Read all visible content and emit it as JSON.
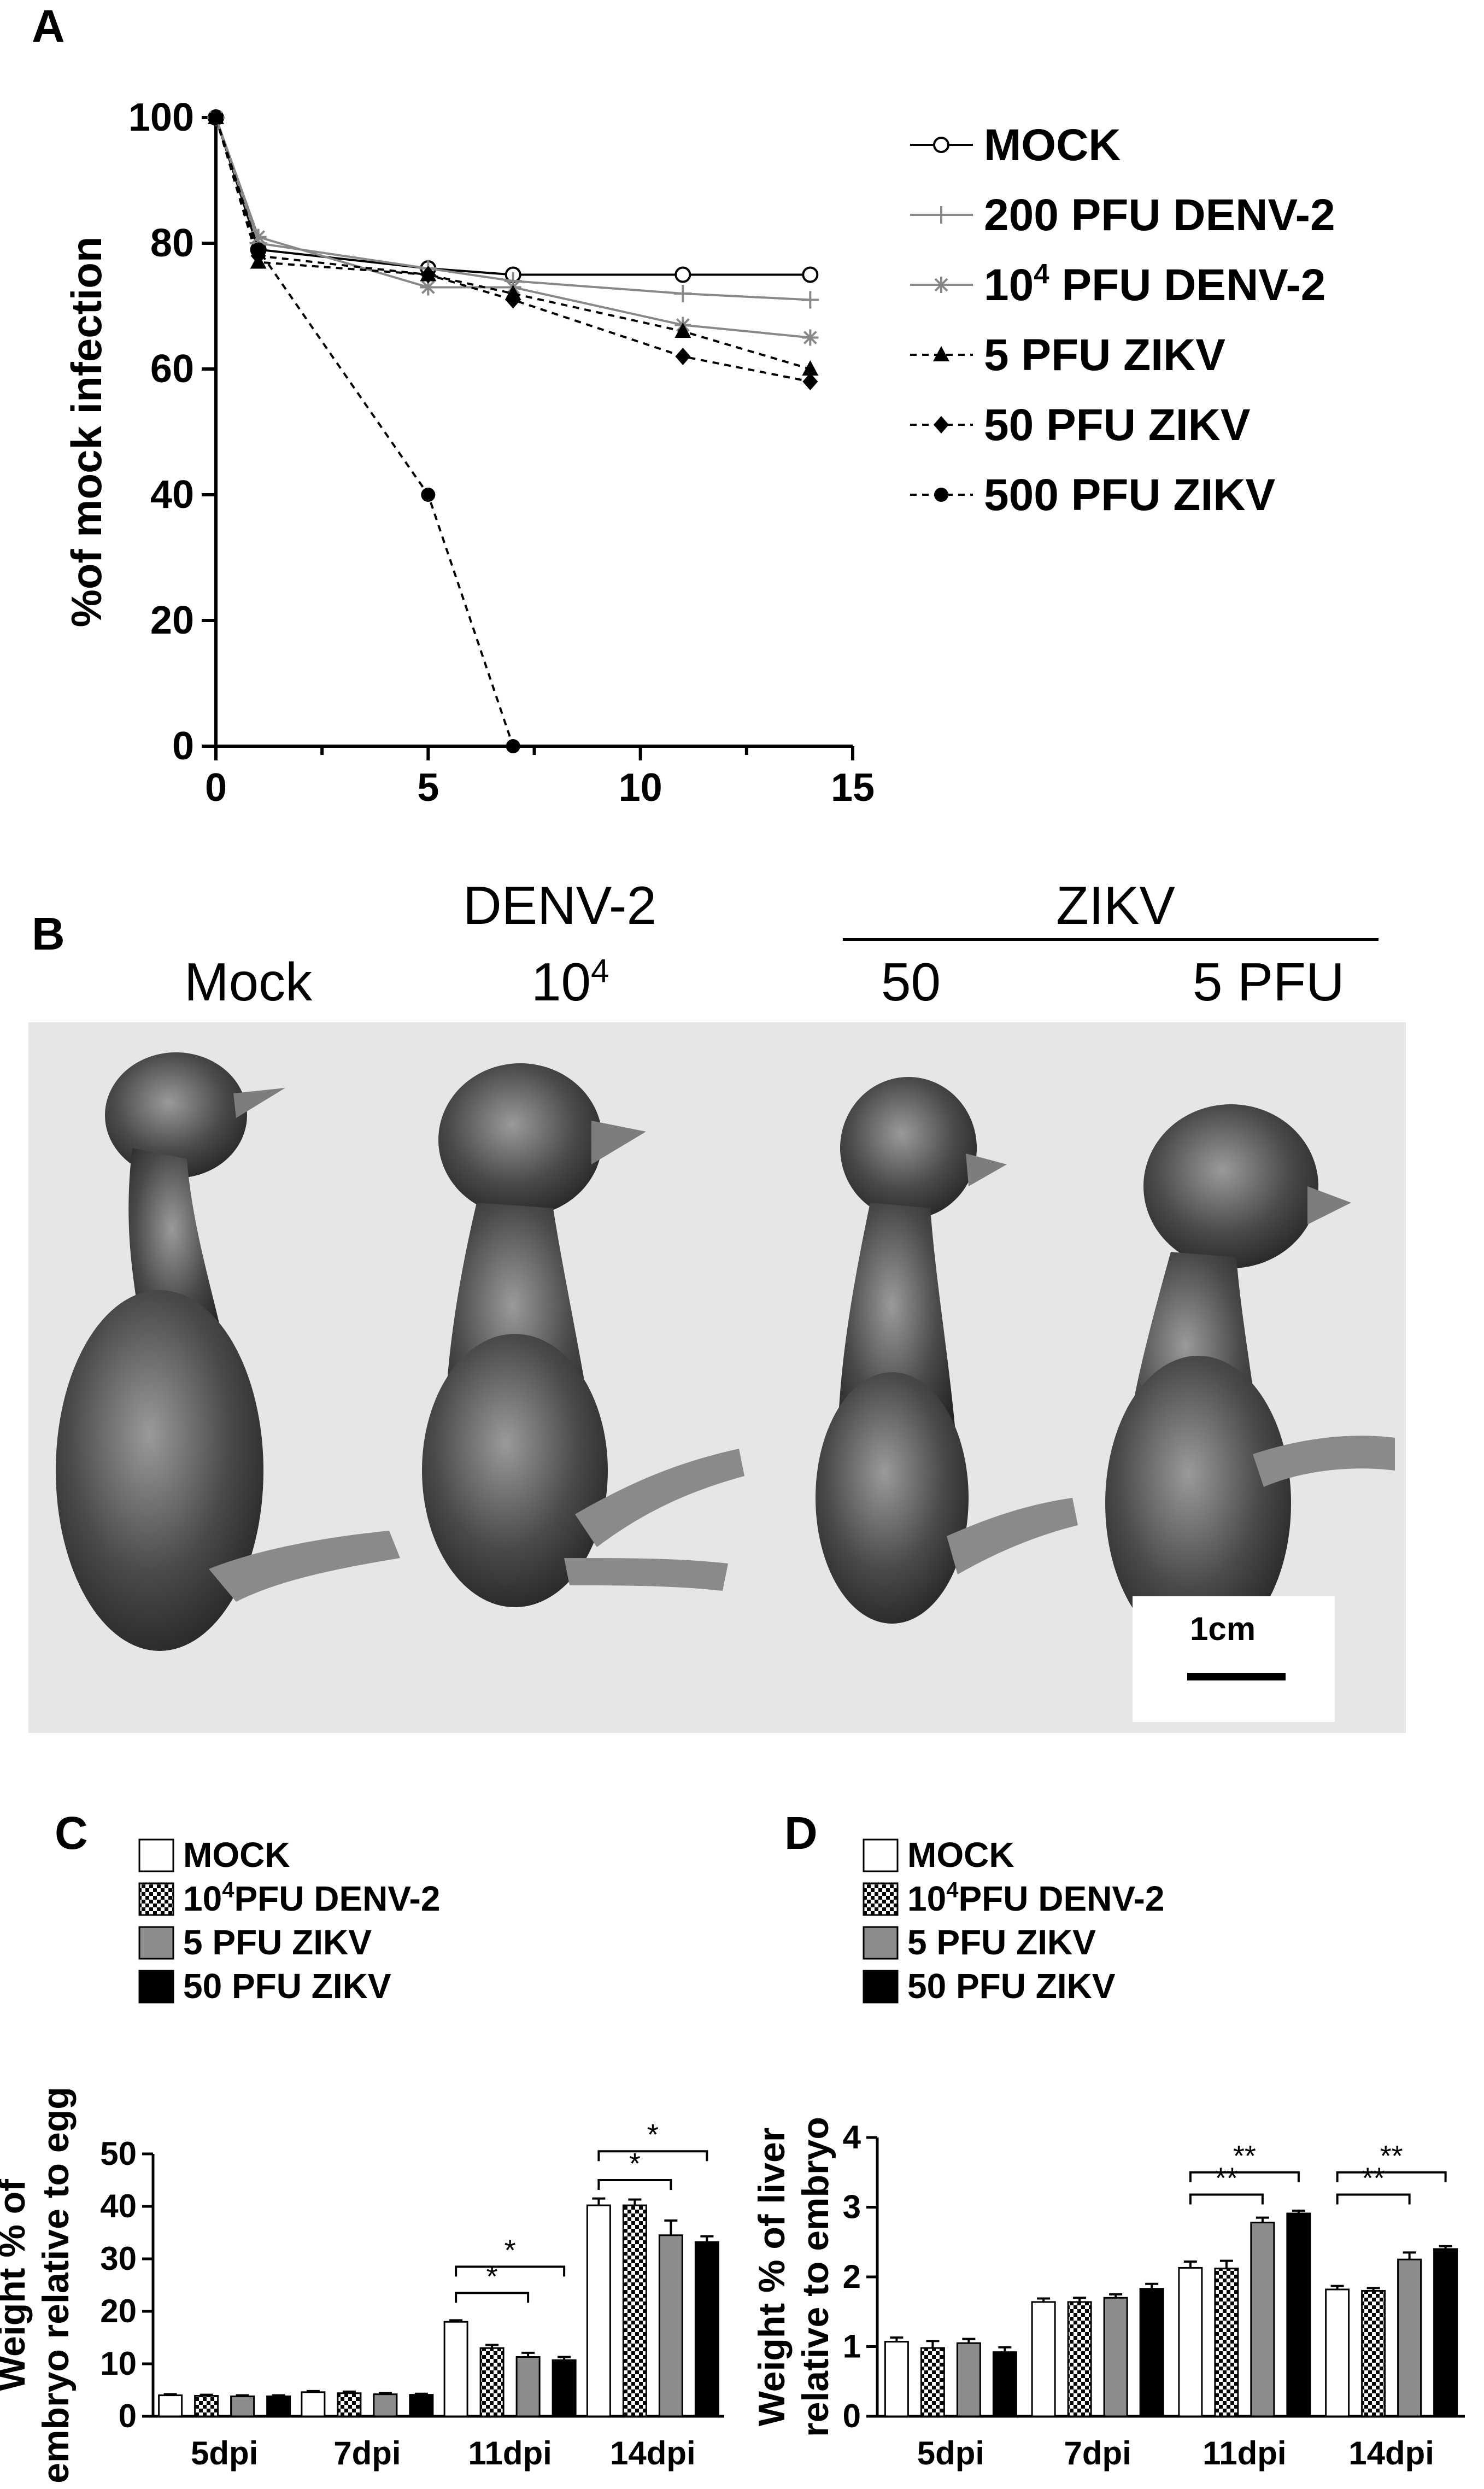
{
  "panels": {
    "a": "A",
    "b": "B",
    "c": "C",
    "d": "D"
  },
  "chart_data": [
    {
      "panel": "A",
      "type": "line",
      "title": "",
      "xlabel": "",
      "ylabel": "%of mock infection",
      "xlim": [
        0,
        15
      ],
      "ylim": [
        0,
        100
      ],
      "xticks": [
        0,
        5,
        10,
        15
      ],
      "yticks": [
        0,
        20,
        40,
        60,
        80,
        100
      ],
      "legend_position": "right",
      "series": [
        {
          "name": "MOCK",
          "marker": "open-circle",
          "dash": false,
          "color": "#000000",
          "points": [
            [
              0,
              100
            ],
            [
              1,
              79
            ],
            [
              5,
              76
            ],
            [
              7,
              75
            ],
            [
              11,
              75
            ],
            [
              14,
              75
            ]
          ]
        },
        {
          "name": "200 PFU DENV-2",
          "marker": "plus",
          "dash": false,
          "color": "#888888",
          "points": [
            [
              0,
              100
            ],
            [
              1,
              80
            ],
            [
              5,
              76
            ],
            [
              7,
              74
            ],
            [
              11,
              72
            ],
            [
              14,
              71
            ]
          ]
        },
        {
          "name": "10^4 PFU DENV-2",
          "marker": "star",
          "dash": false,
          "color": "#888888",
          "points": [
            [
              0,
              100
            ],
            [
              1,
              81
            ],
            [
              5,
              73
            ],
            [
              7,
              73
            ],
            [
              11,
              67
            ],
            [
              14,
              65
            ]
          ]
        },
        {
          "name": "5 PFU ZIKV",
          "marker": "triangle",
          "dash": true,
          "color": "#000000",
          "points": [
            [
              0,
              100
            ],
            [
              1,
              77
            ],
            [
              5,
              75
            ],
            [
              7,
              72
            ],
            [
              11,
              66
            ],
            [
              14,
              60
            ]
          ]
        },
        {
          "name": "50 PFU ZIKV",
          "marker": "diamond",
          "dash": true,
          "color": "#000000",
          "points": [
            [
              0,
              100
            ],
            [
              1,
              78
            ],
            [
              5,
              75
            ],
            [
              7,
              71
            ],
            [
              11,
              62
            ],
            [
              14,
              58
            ]
          ]
        },
        {
          "name": "500 PFU ZIKV",
          "marker": "filled-circle",
          "dash": true,
          "color": "#000000",
          "points": [
            [
              0,
              100
            ],
            [
              1,
              79
            ],
            [
              5,
              40
            ],
            [
              7,
              0
            ]
          ]
        }
      ],
      "legend_labels": [
        {
          "main": "MOCK",
          "sup": "",
          "rest": ""
        },
        {
          "main": "200 PFU DENV-2",
          "sup": "",
          "rest": ""
        },
        {
          "main": "10",
          "sup": "4",
          "rest": " PFU DENV-2"
        },
        {
          "main": "5 PFU ZIKV",
          "sup": "",
          "rest": ""
        },
        {
          "main": "50 PFU ZIKV",
          "sup": "",
          "rest": ""
        },
        {
          "main": "500 PFU ZIKV",
          "sup": "",
          "rest": ""
        }
      ]
    },
    {
      "panel": "C",
      "type": "bar",
      "title": "",
      "xlabel": "",
      "ylabel_line1": "Weight % of",
      "ylabel_line2": "embryo relative to egg",
      "ylim": [
        0,
        50
      ],
      "yticks": [
        0,
        10,
        20,
        30,
        40,
        50
      ],
      "categories": [
        "5dpi",
        "7dpi",
        "11dpi",
        "14dpi"
      ],
      "series": [
        {
          "name": "MOCK",
          "fill": "white",
          "values": [
            4.0,
            4.6,
            18.0,
            40.2
          ],
          "errors": [
            0.2,
            0.2,
            0.3,
            1.3
          ]
        },
        {
          "name": "10^4PFU DENV-2",
          "fill": "checker",
          "values": [
            3.9,
            4.4,
            13.0,
            40.2
          ],
          "errors": [
            0.2,
            0.3,
            0.6,
            1.1
          ]
        },
        {
          "name": "5 PFU ZIKV",
          "fill": "gray",
          "values": [
            3.8,
            4.2,
            11.3,
            34.5
          ],
          "errors": [
            0.2,
            0.2,
            0.8,
            2.8
          ]
        },
        {
          "name": "50 PFU ZIKV",
          "fill": "black",
          "values": [
            3.8,
            4.1,
            10.7,
            33.2
          ],
          "errors": [
            0.2,
            0.2,
            0.6,
            1.1
          ]
        }
      ],
      "legend_labels": [
        {
          "main": "MOCK",
          "sup": "",
          "rest": ""
        },
        {
          "main": "10",
          "sup": "4",
          "rest": "PFU DENV-2"
        },
        {
          "main": "5     PFU  ZIKV",
          "sup": "",
          "rest": ""
        },
        {
          "main": "50   PFU  ZIKV",
          "sup": "",
          "rest": ""
        }
      ],
      "significance": [
        {
          "category": 2,
          "from": 0,
          "to": 2,
          "level": 23.5,
          "label": "*"
        },
        {
          "category": 2,
          "from": 0,
          "to": 3,
          "level": 28.5,
          "label": "*"
        },
        {
          "category": 3,
          "from": 0,
          "to": 2,
          "level": 45.0,
          "label": "*"
        },
        {
          "category": 3,
          "from": 0,
          "to": 3,
          "level": 50.5,
          "label": "*"
        }
      ]
    },
    {
      "panel": "D",
      "type": "bar",
      "title": "",
      "xlabel": "",
      "ylabel_line1": "Weight % of liver",
      "ylabel_line2": "relative to embryo",
      "ylim": [
        0,
        4
      ],
      "yticks": [
        0,
        1,
        2,
        3,
        4
      ],
      "categories": [
        "5dpi",
        "7dpi",
        "11dpi",
        "14dpi"
      ],
      "series": [
        {
          "name": "MOCK",
          "fill": "white",
          "values": [
            1.07,
            1.64,
            2.13,
            1.82
          ],
          "errors": [
            0.06,
            0.05,
            0.09,
            0.05
          ]
        },
        {
          "name": "10^4PFU DENV-2",
          "fill": "checker",
          "values": [
            0.98,
            1.64,
            2.12,
            1.8
          ],
          "errors": [
            0.1,
            0.06,
            0.11,
            0.04
          ]
        },
        {
          "name": "5 PFU ZIKV",
          "fill": "gray",
          "values": [
            1.05,
            1.7,
            2.78,
            2.25
          ],
          "errors": [
            0.06,
            0.05,
            0.07,
            0.1
          ]
        },
        {
          "name": "50 PFU ZIKV",
          "fill": "black",
          "values": [
            0.92,
            1.83,
            2.91,
            2.4
          ],
          "errors": [
            0.07,
            0.07,
            0.04,
            0.04
          ]
        }
      ],
      "legend_labels": [
        {
          "main": "MOCK",
          "sup": "",
          "rest": ""
        },
        {
          "main": "10",
          "sup": "4",
          "rest": "PFU DENV-2"
        },
        {
          "main": "5     PFU  ZIKV",
          "sup": "",
          "rest": ""
        },
        {
          "main": "50   PFU  ZIKV",
          "sup": "",
          "rest": ""
        }
      ],
      "significance": [
        {
          "category": 2,
          "from": 0,
          "to": 2,
          "level": 3.18,
          "label": "**"
        },
        {
          "category": 2,
          "from": 0,
          "to": 3,
          "level": 3.5,
          "label": "**"
        },
        {
          "category": 3,
          "from": 0,
          "to": 2,
          "level": 3.18,
          "label": "**"
        },
        {
          "category": 3,
          "from": 0,
          "to": 3,
          "level": 3.5,
          "label": "**"
        }
      ]
    }
  ],
  "photo": {
    "header_denv": "DENV-2",
    "header_zikv": "ZIKV",
    "label_mock": "Mock",
    "label_denv_base": "10",
    "label_denv_sup": "4",
    "label_zikv50": "50",
    "label_zikv5": "5 PFU",
    "scale_bar": "1cm"
  }
}
